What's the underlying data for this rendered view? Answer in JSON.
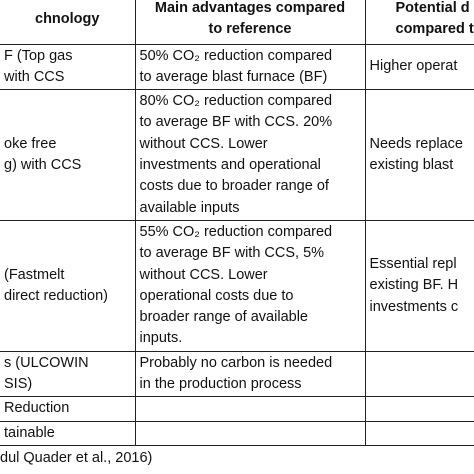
{
  "table": {
    "header": [
      [
        "chnology"
      ],
      [
        "Main advantages compared",
        "to reference"
      ],
      [
        "Potential d",
        "compared t"
      ]
    ],
    "rows": [
      [
        [
          "F (Top gas",
          "with CCS"
        ],
        [
          "50% CO₂ reduction compared",
          "to average blast furnace (BF)"
        ],
        [
          "Higher operat"
        ]
      ],
      [
        [
          "oke free",
          "g) with CCS"
        ],
        [
          "80% CO₂ reduction compared",
          "to average BF with CCS. 20%",
          "without CCS. Lower",
          "investments and operational",
          "costs due to broader range of",
          "available inputs"
        ],
        [
          "Needs replace",
          "existing blast"
        ]
      ],
      [
        [
          "(Fastmelt",
          "direct reduction)"
        ],
        [
          "55% CO₂ reduction compared",
          "to average BF with CCS, 5%",
          "without CCS. Lower",
          "operational costs due to",
          "broader range of available",
          "inputs."
        ],
        [
          "Essential repl",
          "existing BF. H",
          "investments c"
        ]
      ],
      [
        [
          "s (ULCOWIN",
          "SIS)"
        ],
        [
          "Probably no carbon is needed",
          "in the production process"
        ],
        []
      ],
      [
        [
          "Reduction"
        ],
        [],
        []
      ],
      [
        [
          "tainable"
        ],
        [],
        []
      ]
    ]
  },
  "footer": "dul Quader et al., 2016)"
}
